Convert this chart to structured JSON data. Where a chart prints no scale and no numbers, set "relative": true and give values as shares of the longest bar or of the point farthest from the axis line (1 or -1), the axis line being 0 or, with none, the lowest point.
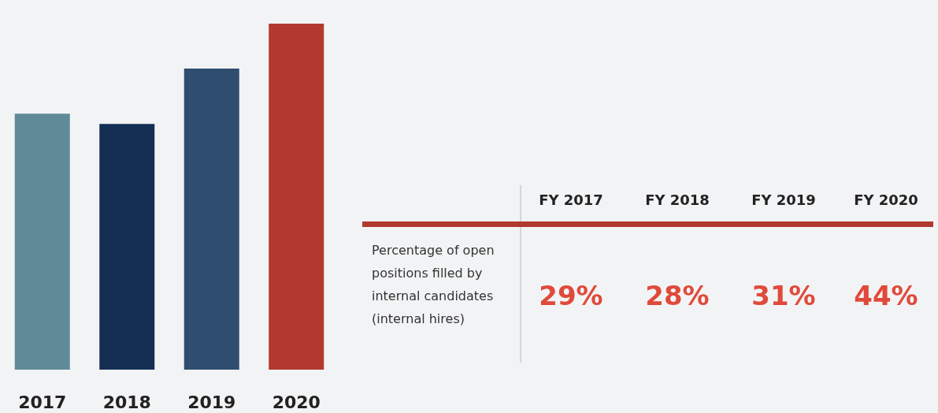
{
  "chart_data": [
    {
      "type": "bar",
      "categories": [
        "2017",
        "2018",
        "2019",
        "2020"
      ],
      "relative": true,
      "values": [
        0.74,
        0.71,
        0.87,
        1
      ],
      "colors": [
        "#5f8b99",
        "#152e54",
        "#2e4d6f",
        "#b2392e"
      ]
    },
    {
      "type": "other",
      "categories": [
        "FY 2017",
        "FY 2018",
        "FY 2019",
        "FY 2020"
      ],
      "values": [
        29,
        28,
        31,
        44
      ],
      "value_labels": [
        "29%",
        "28%",
        "31%",
        "44%"
      ],
      "annotations": [
        "Percentage of open positions filled by internal candidates (internal hires)"
      ]
    }
  ]
}
